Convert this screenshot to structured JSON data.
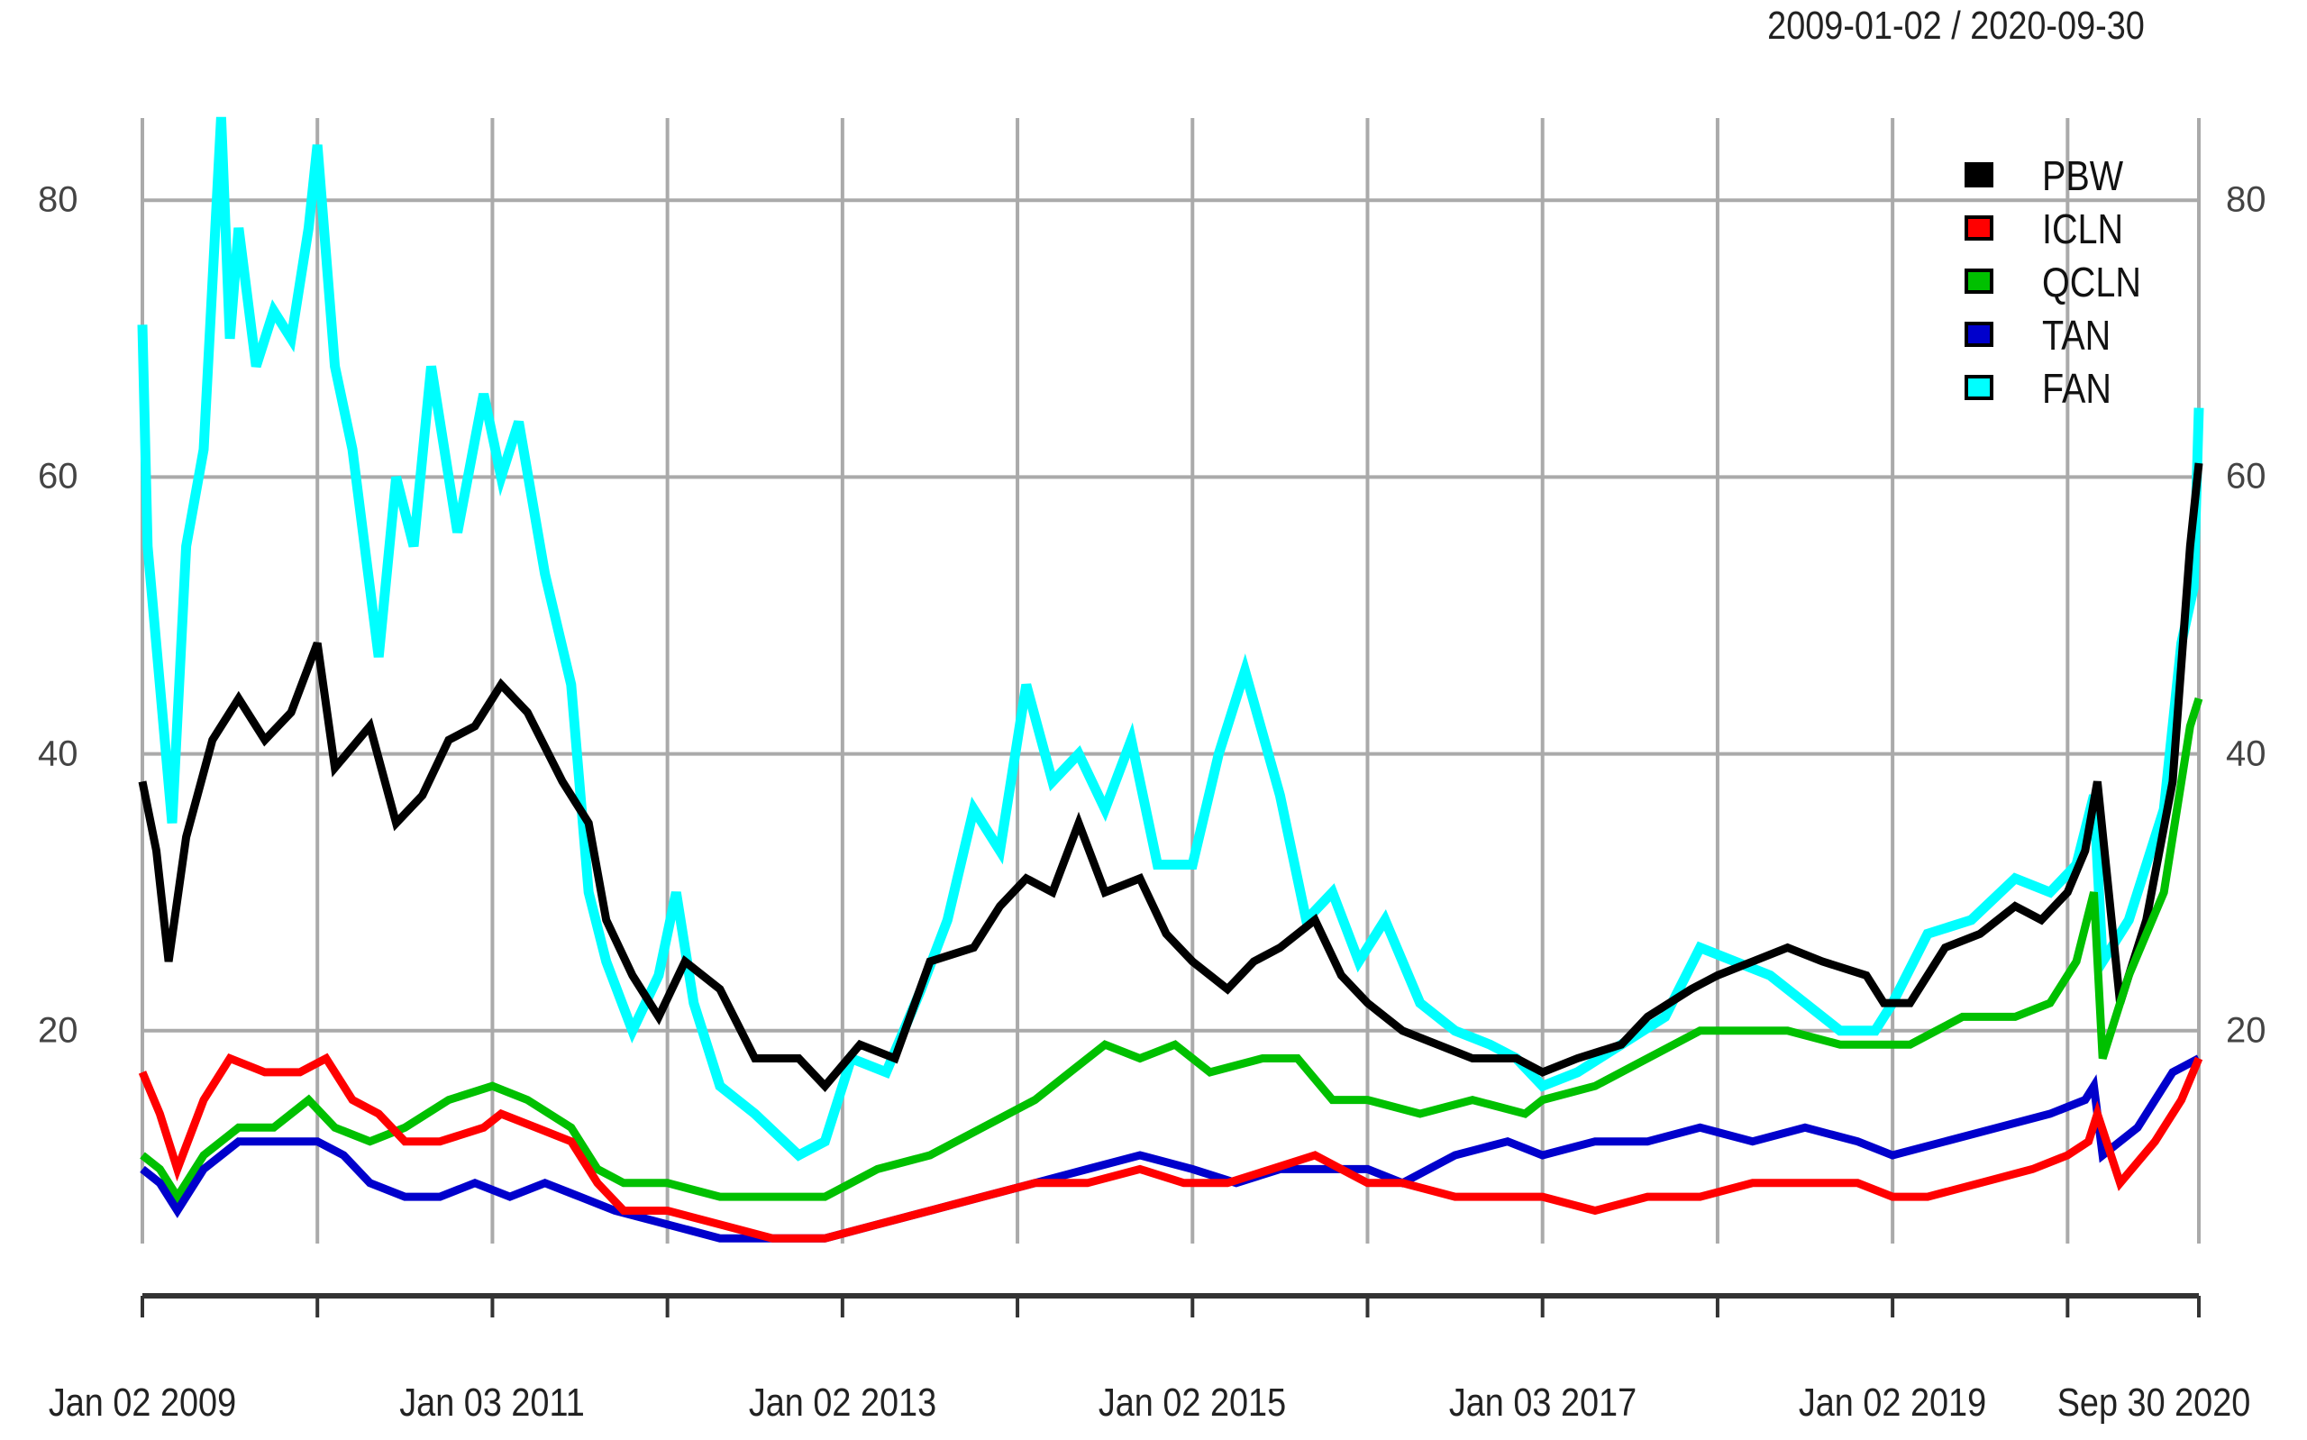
{
  "header": {
    "date_range": "2009-01-02 / 2020-09-30"
  },
  "colors": {
    "grid": "#aaaaaa",
    "axis": "#333333",
    "PBW": "#000000",
    "ICLN": "#ff0000",
    "QCLN": "#00c000",
    "TAN": "#0000cc",
    "FAN": "#00ffff"
  },
  "y_axis": {
    "ticks": [
      {
        "value": 80,
        "label": "80"
      },
      {
        "value": 60,
        "label": "60"
      },
      {
        "value": 40,
        "label": "40"
      },
      {
        "value": 20,
        "label": "20"
      }
    ]
  },
  "x_axis": {
    "labels": [
      {
        "t": 2009.0,
        "label": "Jan 02 2009"
      },
      {
        "t": 2011.0,
        "label": "Jan 03 2011"
      },
      {
        "t": 2013.0,
        "label": "Jan 02 2013"
      },
      {
        "t": 2015.0,
        "label": "Jan 02 2015"
      },
      {
        "t": 2017.0,
        "label": "Jan 03 2017"
      },
      {
        "t": 2019.0,
        "label": "Jan 02 2019"
      },
      {
        "t": 2020.75,
        "label": "Sep 30 2020"
      }
    ],
    "ticks": [
      2009.0,
      2010.0,
      2011.0,
      2012.0,
      2013.0,
      2014.0,
      2015.0,
      2016.0,
      2017.0,
      2018.0,
      2019.0,
      2020.0,
      2020.75
    ]
  },
  "legend": [
    {
      "key": "PBW",
      "label": "PBW"
    },
    {
      "key": "ICLN",
      "label": "ICLN"
    },
    {
      "key": "QCLN",
      "label": "QCLN"
    },
    {
      "key": "TAN",
      "label": "TAN"
    },
    {
      "key": "FAN",
      "label": "FAN"
    }
  ],
  "chart_data": {
    "type": "line",
    "title": "2009-01-02 / 2020-09-30",
    "xlabel": "",
    "ylabel": "",
    "ylim": [
      5,
      86
    ],
    "xlim": [
      "2009-01-02",
      "2020-09-30"
    ],
    "grid": true,
    "legend_position": "top-right",
    "x_tick_labels": [
      "Jan 02 2009",
      "Jan 03 2011",
      "Jan 02 2013",
      "Jan 02 2015",
      "Jan 03 2017",
      "Jan 02 2019",
      "Sep 30 2020"
    ],
    "y_tick_labels": [
      "20",
      "40",
      "60",
      "80"
    ],
    "series": [
      {
        "name": "PBW",
        "color": "#000000",
        "x": [
          2009.0,
          2009.08,
          2009.15,
          2009.25,
          2009.4,
          2009.55,
          2009.7,
          2009.85,
          2010.0,
          2010.1,
          2010.3,
          2010.45,
          2010.6,
          2010.75,
          2010.9,
          2011.05,
          2011.2,
          2011.4,
          2011.55,
          2011.65,
          2011.8,
          2011.95,
          2012.1,
          2012.3,
          2012.5,
          2012.75,
          2012.9,
          2013.1,
          2013.3,
          2013.5,
          2013.75,
          2013.9,
          2014.05,
          2014.2,
          2014.35,
          2014.5,
          2014.7,
          2014.85,
          2015.0,
          2015.2,
          2015.35,
          2015.5,
          2015.7,
          2015.85,
          2016.0,
          2016.2,
          2016.4,
          2016.6,
          2016.85,
          2017.0,
          2017.2,
          2017.45,
          2017.6,
          2017.85,
          2018.0,
          2018.2,
          2018.4,
          2018.6,
          2018.85,
          2018.95,
          2019.1,
          2019.3,
          2019.5,
          2019.7,
          2019.85,
          2020.0,
          2020.1,
          2020.17,
          2020.3,
          2020.45,
          2020.6,
          2020.7,
          2020.75
        ],
        "values": [
          38,
          33,
          25,
          34,
          41,
          44,
          41,
          43,
          48,
          39,
          42,
          35,
          37,
          41,
          42,
          45,
          43,
          38,
          35,
          28,
          24,
          21,
          25,
          23,
          18,
          18,
          16,
          19,
          18,
          25,
          26,
          29,
          31,
          30,
          35,
          30,
          31,
          27,
          25,
          23,
          25,
          26,
          28,
          24,
          22,
          20,
          19,
          18,
          18,
          17,
          18,
          19,
          21,
          23,
          24,
          25,
          26,
          25,
          24,
          22,
          22,
          26,
          27,
          29,
          28,
          30,
          33,
          38,
          22,
          28,
          38,
          55,
          61
        ]
      },
      {
        "name": "ICLN",
        "color": "#ff0000",
        "x": [
          2009.0,
          2009.1,
          2009.2,
          2009.35,
          2009.5,
          2009.7,
          2009.9,
          2010.05,
          2010.2,
          2010.35,
          2010.5,
          2010.7,
          2010.95,
          2011.05,
          2011.25,
          2011.45,
          2011.6,
          2011.75,
          2012.0,
          2012.3,
          2012.6,
          2012.9,
          2013.2,
          2013.5,
          2013.8,
          2014.1,
          2014.4,
          2014.7,
          2014.95,
          2015.2,
          2015.45,
          2015.7,
          2016.0,
          2016.2,
          2016.5,
          2016.8,
          2017.0,
          2017.3,
          2017.6,
          2017.9,
          2018.2,
          2018.5,
          2018.8,
          2019.0,
          2019.2,
          2019.5,
          2019.8,
          2020.0,
          2020.12,
          2020.17,
          2020.3,
          2020.5,
          2020.65,
          2020.75
        ],
        "values": [
          17,
          14,
          10,
          15,
          18,
          17,
          17,
          18,
          15,
          14,
          12,
          12,
          13,
          14,
          13,
          12,
          9,
          7,
          7,
          6,
          5,
          5,
          6,
          7,
          8,
          9,
          9,
          10,
          9,
          9,
          10,
          11,
          9,
          9,
          8,
          8,
          8,
          7,
          8,
          8,
          9,
          9,
          9,
          8,
          8,
          9,
          10,
          11,
          12,
          14,
          9,
          12,
          15,
          18
        ]
      },
      {
        "name": "QCLN",
        "color": "#00c000",
        "x": [
          2009.0,
          2009.1,
          2009.2,
          2009.35,
          2009.55,
          2009.75,
          2009.95,
          2010.1,
          2010.3,
          2010.5,
          2010.75,
          2011.0,
          2011.2,
          2011.45,
          2011.6,
          2011.75,
          2012.0,
          2012.3,
          2012.6,
          2012.9,
          2013.2,
          2013.5,
          2013.8,
          2014.1,
          2014.3,
          2014.5,
          2014.7,
          2014.9,
          2015.1,
          2015.4,
          2015.6,
          2015.8,
          2016.0,
          2016.3,
          2016.6,
          2016.9,
          2017.0,
          2017.3,
          2017.6,
          2017.9,
          2018.1,
          2018.4,
          2018.7,
          2018.95,
          2019.1,
          2019.4,
          2019.7,
          2019.9,
          2020.05,
          2020.15,
          2020.2,
          2020.35,
          2020.55,
          2020.7,
          2020.75
        ],
        "values": [
          11,
          10,
          8,
          11,
          13,
          13,
          15,
          13,
          12,
          13,
          15,
          16,
          15,
          13,
          10,
          9,
          9,
          8,
          8,
          8,
          10,
          11,
          13,
          15,
          17,
          19,
          18,
          19,
          17,
          18,
          18,
          15,
          15,
          14,
          15,
          14,
          15,
          16,
          18,
          20,
          20,
          20,
          19,
          19,
          19,
          21,
          21,
          22,
          25,
          30,
          18,
          24,
          30,
          42,
          44
        ]
      },
      {
        "name": "TAN",
        "color": "#0000cc",
        "x": [
          2009.0,
          2009.1,
          2009.2,
          2009.35,
          2009.55,
          2009.8,
          2010.0,
          2010.15,
          2010.3,
          2010.5,
          2010.7,
          2010.9,
          2011.1,
          2011.3,
          2011.5,
          2011.7,
          2012.0,
          2012.3,
          2012.6,
          2012.9,
          2013.2,
          2013.5,
          2013.8,
          2014.1,
          2014.4,
          2014.7,
          2015.0,
          2015.25,
          2015.5,
          2015.8,
          2016.0,
          2016.2,
          2016.5,
          2016.8,
          2017.0,
          2017.3,
          2017.6,
          2017.9,
          2018.2,
          2018.5,
          2018.8,
          2019.0,
          2019.3,
          2019.6,
          2019.9,
          2020.1,
          2020.15,
          2020.2,
          2020.4,
          2020.6,
          2020.75
        ],
        "values": [
          10,
          9,
          7,
          10,
          12,
          12,
          12,
          11,
          9,
          8,
          8,
          9,
          8,
          9,
          8,
          7,
          6,
          5,
          5,
          5,
          6,
          7,
          8,
          9,
          10,
          11,
          10,
          9,
          10,
          10,
          10,
          9,
          11,
          12,
          11,
          12,
          12,
          13,
          12,
          13,
          12,
          11,
          12,
          13,
          14,
          15,
          16,
          11,
          13,
          17,
          18
        ]
      },
      {
        "name": "FAN",
        "color": "#00ffff",
        "x": [
          2009.0,
          2009.03,
          2009.1,
          2009.17,
          2009.25,
          2009.35,
          2009.45,
          2009.5,
          2009.55,
          2009.65,
          2009.75,
          2009.85,
          2009.95,
          2010.0,
          2010.1,
          2010.2,
          2010.35,
          2010.45,
          2010.55,
          2010.65,
          2010.8,
          2010.95,
          2011.05,
          2011.15,
          2011.3,
          2011.45,
          2011.55,
          2011.65,
          2011.8,
          2011.95,
          2012.05,
          2012.15,
          2012.3,
          2012.5,
          2012.75,
          2012.9,
          2013.05,
          2013.25,
          2013.45,
          2013.6,
          2013.75,
          2013.9,
          2014.05,
          2014.2,
          2014.35,
          2014.5,
          2014.65,
          2014.8,
          2015.0,
          2015.15,
          2015.3,
          2015.5,
          2015.65,
          2015.8,
          2015.95,
          2016.1,
          2016.3,
          2016.5,
          2016.7,
          2016.85,
          2017.0,
          2017.2,
          2017.45,
          2017.7,
          2017.9,
          2018.1,
          2018.3,
          2018.5,
          2018.7,
          2018.9,
          2019.0,
          2019.2,
          2019.45,
          2019.7,
          2019.9,
          2020.05,
          2020.15,
          2020.2,
          2020.35,
          2020.55,
          2020.65,
          2020.72,
          2020.75
        ],
        "values": [
          71,
          55,
          45,
          35,
          55,
          62,
          86,
          70,
          78,
          68,
          72,
          70,
          78,
          84,
          68,
          62,
          47,
          60,
          55,
          68,
          56,
          66,
          60,
          64,
          53,
          45,
          30,
          25,
          20,
          24,
          30,
          22,
          16,
          14,
          11,
          12,
          18,
          17,
          23,
          28,
          36,
          33,
          45,
          38,
          40,
          36,
          41,
          32,
          32,
          40,
          46,
          37,
          28,
          30,
          25,
          28,
          22,
          20,
          19,
          18,
          16,
          17,
          19,
          21,
          26,
          25,
          24,
          22,
          20,
          20,
          22,
          27,
          28,
          31,
          30,
          32,
          37,
          25,
          28,
          36,
          48,
          52,
          65
        ]
      }
    ]
  }
}
